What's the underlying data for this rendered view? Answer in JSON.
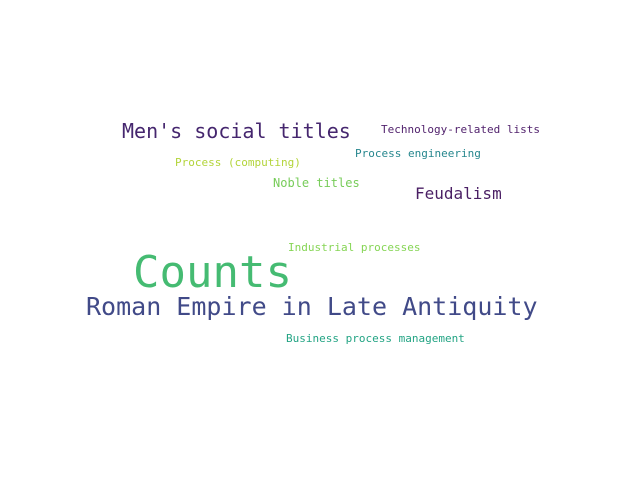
{
  "words": [
    {
      "text": "Men's social titles",
      "color": "#45266e"
    },
    {
      "text": "Technology-related lists",
      "color": "#4f1f6b"
    },
    {
      "text": "Process (computing)",
      "color": "#b3d43a"
    },
    {
      "text": "Process engineering",
      "color": "#27878e"
    },
    {
      "text": "Noble titles",
      "color": "#77cc59"
    },
    {
      "text": "Feudalism",
      "color": "#4a1f64"
    },
    {
      "text": "Industrial processes",
      "color": "#86d555"
    },
    {
      "text": "Counts",
      "color": "#45bb72"
    },
    {
      "text": "Roman Empire in Late Antiquity",
      "color": "#414a88"
    },
    {
      "text": "Business process management",
      "color": "#23a484"
    }
  ]
}
